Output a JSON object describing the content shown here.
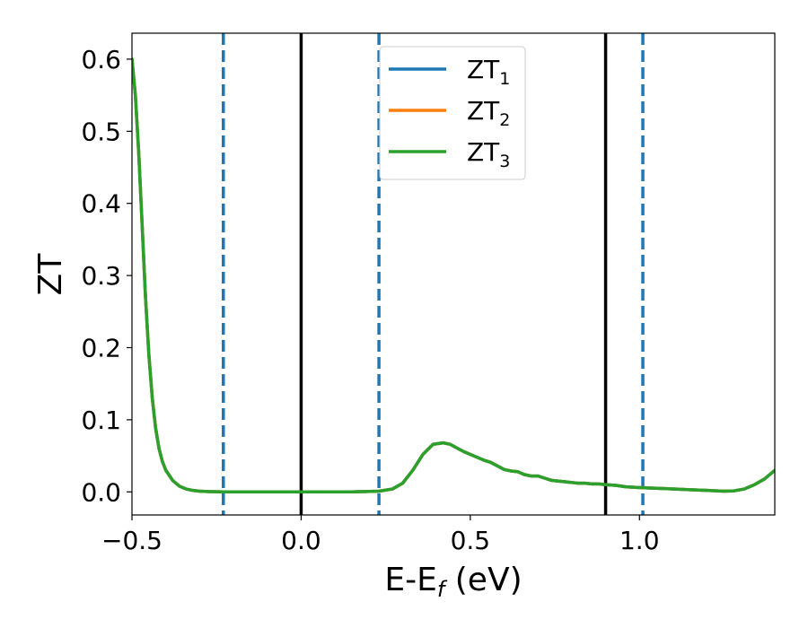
{
  "chart_data": {
    "type": "line",
    "xlabel": {
      "main": "E-E",
      "sub": "f",
      "rest": " (eV)"
    },
    "ylabel": "ZT",
    "xlim": [
      -0.5,
      1.4
    ],
    "ylim": [
      -0.032,
      0.636
    ],
    "xticks": [
      -0.5,
      0.0,
      0.5,
      1.0
    ],
    "xtick_labels": [
      "−0.5",
      "0.0",
      "0.5",
      "1.0"
    ],
    "yticks": [
      0.0,
      0.1,
      0.2,
      0.3,
      0.4,
      0.5,
      0.6
    ],
    "ytick_labels": [
      "0.0",
      "0.1",
      "0.2",
      "0.3",
      "0.4",
      "0.5",
      "0.6"
    ],
    "grid": false,
    "legend_position": "top-center",
    "series": [
      {
        "name": "ZT",
        "sub": "1",
        "color": "#1f77b4",
        "x": [
          -0.5,
          -0.49,
          -0.48,
          -0.47,
          -0.46,
          -0.45,
          -0.44,
          -0.43,
          -0.42,
          -0.41,
          -0.4,
          -0.38,
          -0.36,
          -0.34,
          -0.32,
          -0.3,
          -0.27,
          -0.23,
          -0.15,
          0.0,
          0.15,
          0.23,
          0.27,
          0.3,
          0.33,
          0.36,
          0.39,
          0.42,
          0.44,
          0.46,
          0.48,
          0.5,
          0.52,
          0.54,
          0.56,
          0.58,
          0.6,
          0.62,
          0.64,
          0.66,
          0.68,
          0.7,
          0.72,
          0.74,
          0.76,
          0.78,
          0.8,
          0.82,
          0.84,
          0.86,
          0.88,
          0.9,
          0.93,
          0.96,
          1.0,
          1.05,
          1.1,
          1.15,
          1.2,
          1.25,
          1.28,
          1.31,
          1.34,
          1.37,
          1.4
        ],
        "y": [
          0.6,
          0.55,
          0.47,
          0.37,
          0.27,
          0.19,
          0.13,
          0.088,
          0.06,
          0.042,
          0.03,
          0.016,
          0.008,
          0.004,
          0.002,
          0.001,
          0.0004,
          0.0,
          0.0,
          0.0,
          0.0,
          0.001,
          0.004,
          0.012,
          0.03,
          0.052,
          0.066,
          0.068,
          0.066,
          0.061,
          0.056,
          0.052,
          0.048,
          0.044,
          0.041,
          0.036,
          0.031,
          0.029,
          0.028,
          0.024,
          0.022,
          0.022,
          0.019,
          0.016,
          0.015,
          0.014,
          0.013,
          0.012,
          0.012,
          0.011,
          0.011,
          0.01,
          0.009,
          0.007,
          0.006,
          0.005,
          0.004,
          0.003,
          0.002,
          0.001,
          0.0015,
          0.004,
          0.01,
          0.018,
          0.03
        ]
      },
      {
        "name": "ZT",
        "sub": "2",
        "color": "#ff7f0e",
        "x": [
          -0.5,
          -0.49,
          -0.48,
          -0.47,
          -0.46,
          -0.45,
          -0.44,
          -0.43,
          -0.42,
          -0.41,
          -0.4,
          -0.38,
          -0.36,
          -0.34,
          -0.32,
          -0.3,
          -0.27,
          -0.23,
          -0.15,
          0.0,
          0.15,
          0.23,
          0.27,
          0.3,
          0.33,
          0.36,
          0.39,
          0.42,
          0.44,
          0.46,
          0.48,
          0.5,
          0.52,
          0.54,
          0.56,
          0.58,
          0.6,
          0.62,
          0.64,
          0.66,
          0.68,
          0.7,
          0.72,
          0.74,
          0.76,
          0.78,
          0.8,
          0.82,
          0.84,
          0.86,
          0.88,
          0.9,
          0.93,
          0.96,
          1.0,
          1.05,
          1.1,
          1.15,
          1.2,
          1.25,
          1.28,
          1.31,
          1.34,
          1.37,
          1.4
        ],
        "y": [
          0.6,
          0.55,
          0.47,
          0.37,
          0.27,
          0.19,
          0.13,
          0.088,
          0.06,
          0.042,
          0.03,
          0.016,
          0.008,
          0.004,
          0.002,
          0.001,
          0.0004,
          0.0,
          0.0,
          0.0,
          0.0,
          0.001,
          0.004,
          0.012,
          0.03,
          0.052,
          0.066,
          0.068,
          0.066,
          0.061,
          0.056,
          0.052,
          0.048,
          0.044,
          0.041,
          0.036,
          0.031,
          0.029,
          0.028,
          0.024,
          0.022,
          0.022,
          0.019,
          0.016,
          0.015,
          0.014,
          0.013,
          0.012,
          0.012,
          0.011,
          0.011,
          0.01,
          0.009,
          0.007,
          0.006,
          0.005,
          0.004,
          0.003,
          0.002,
          0.001,
          0.0015,
          0.004,
          0.01,
          0.018,
          0.03
        ]
      },
      {
        "name": "ZT",
        "sub": "3",
        "color": "#2ca02c",
        "x": [
          -0.5,
          -0.49,
          -0.48,
          -0.47,
          -0.46,
          -0.45,
          -0.44,
          -0.43,
          -0.42,
          -0.41,
          -0.4,
          -0.38,
          -0.36,
          -0.34,
          -0.32,
          -0.3,
          -0.27,
          -0.23,
          -0.15,
          0.0,
          0.15,
          0.23,
          0.27,
          0.3,
          0.33,
          0.36,
          0.39,
          0.42,
          0.44,
          0.46,
          0.48,
          0.5,
          0.52,
          0.54,
          0.56,
          0.58,
          0.6,
          0.62,
          0.64,
          0.66,
          0.68,
          0.7,
          0.72,
          0.74,
          0.76,
          0.78,
          0.8,
          0.82,
          0.84,
          0.86,
          0.88,
          0.9,
          0.93,
          0.96,
          1.0,
          1.05,
          1.1,
          1.15,
          1.2,
          1.25,
          1.28,
          1.31,
          1.34,
          1.37,
          1.4
        ],
        "y": [
          0.6,
          0.55,
          0.47,
          0.37,
          0.27,
          0.19,
          0.13,
          0.088,
          0.06,
          0.042,
          0.03,
          0.016,
          0.008,
          0.004,
          0.002,
          0.001,
          0.0004,
          0.0,
          0.0,
          0.0,
          0.0,
          0.001,
          0.004,
          0.012,
          0.03,
          0.052,
          0.066,
          0.068,
          0.066,
          0.061,
          0.056,
          0.052,
          0.048,
          0.044,
          0.041,
          0.036,
          0.031,
          0.029,
          0.028,
          0.024,
          0.022,
          0.022,
          0.019,
          0.016,
          0.015,
          0.014,
          0.013,
          0.012,
          0.012,
          0.011,
          0.011,
          0.01,
          0.009,
          0.007,
          0.006,
          0.005,
          0.004,
          0.003,
          0.002,
          0.001,
          0.0015,
          0.004,
          0.01,
          0.018,
          0.03
        ]
      }
    ],
    "vlines": [
      {
        "x": 0.0,
        "style": "solid",
        "color": "#000000"
      },
      {
        "x": 0.9,
        "style": "solid",
        "color": "#000000"
      },
      {
        "x": -0.23,
        "style": "dashed",
        "color": "#1f77b4"
      },
      {
        "x": 0.23,
        "style": "dashed",
        "color": "#1f77b4"
      },
      {
        "x": 1.01,
        "style": "dashed",
        "color": "#1f77b4"
      }
    ]
  }
}
